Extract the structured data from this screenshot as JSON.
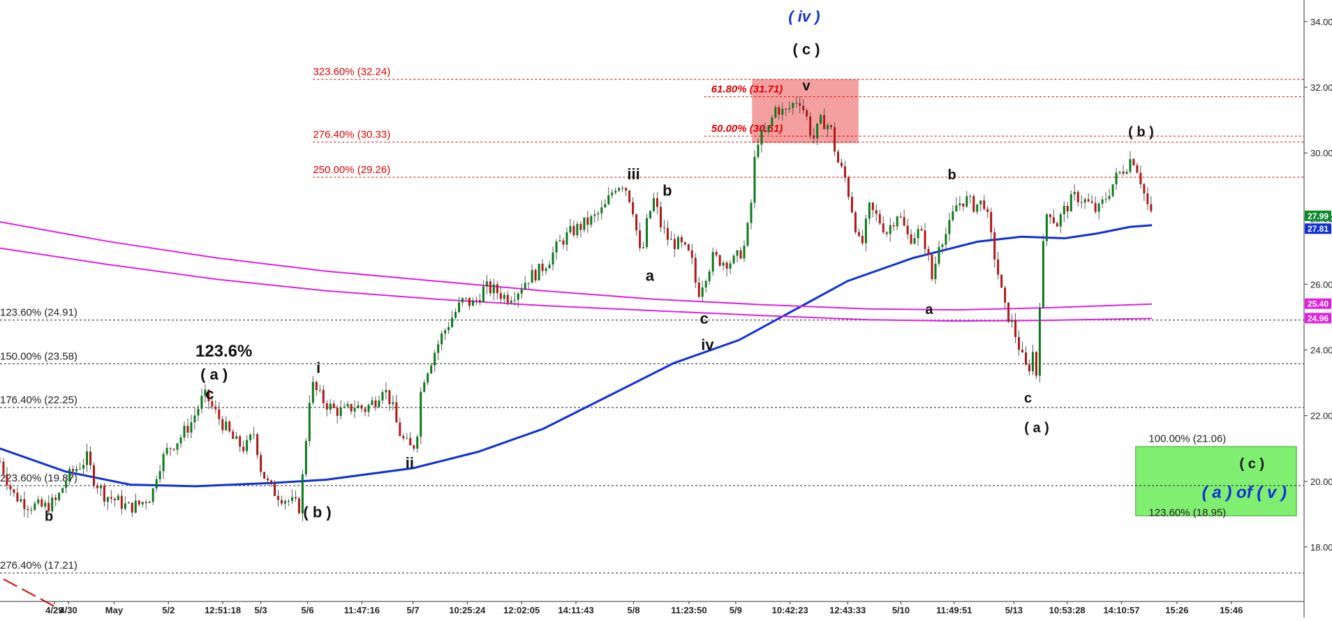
{
  "chart_data": {
    "type": "candlestick",
    "title": "",
    "colors": {
      "up": "#0a7a1a",
      "down": "#b01818",
      "ma_blue": "#1030d8",
      "ma_magenta": "#e020e0",
      "fib_red": "#e00000",
      "fib_black": "#222222",
      "wave_blue": "#1030d8",
      "zone_red": "#f4a0a0",
      "zone_green": "#80ee70",
      "last_price_bg": "#0a8a2a"
    },
    "y_axis": {
      "range": [
        16.8,
        35.0
      ],
      "ticks": [
        "18.00",
        "20.00",
        "22.00",
        "24.00",
        "26.00",
        "28.00",
        "30.00",
        "32.00",
        "34.00"
      ],
      "tick_values": [
        18,
        20,
        22,
        24,
        26,
        28,
        30,
        32,
        34
      ],
      "price_tags": [
        {
          "label": "27.99",
          "value": 27.99,
          "bg": "#0a8a2a"
        },
        {
          "label": "27.81",
          "value": 27.81,
          "bg": "#1030d8"
        },
        {
          "label": "25.40",
          "value": 25.4,
          "bg": "#e020e0"
        },
        {
          "label": "24.96",
          "value": 24.96,
          "bg": "#e020e0"
        }
      ]
    },
    "x_axis": {
      "range": [
        0,
        1200
      ],
      "ticks": [
        {
          "label": "4/29",
          "x": 50
        },
        {
          "label": "4/30",
          "x": 63
        },
        {
          "label": "May",
          "x": 105
        },
        {
          "label": "5/2",
          "x": 155
        },
        {
          "label": "12:51:18",
          "x": 205
        },
        {
          "label": "5/3",
          "x": 240
        },
        {
          "label": "5/6",
          "x": 283
        },
        {
          "label": "11:47:16",
          "x": 333
        },
        {
          "label": "5/7",
          "x": 380
        },
        {
          "label": "10:25:24",
          "x": 430
        },
        {
          "label": "12:02:05",
          "x": 480
        },
        {
          "label": "14:11:43",
          "x": 530
        },
        {
          "label": "5/8",
          "x": 583
        },
        {
          "label": "11:23:50",
          "x": 634
        },
        {
          "label": "5/9",
          "x": 677
        },
        {
          "label": "10:42:23",
          "x": 727
        },
        {
          "label": "12:43:33",
          "x": 780
        },
        {
          "label": "5/10",
          "x": 829
        },
        {
          "label": "11:49:51",
          "x": 878
        },
        {
          "label": "5/13",
          "x": 933
        },
        {
          "label": "10:53:28",
          "x": 982
        },
        {
          "label": "14:10:57",
          "x": 1032
        },
        {
          "label": "15:26",
          "x": 1083
        },
        {
          "label": "15:46",
          "x": 1133
        }
      ]
    },
    "price_path": [
      {
        "x": 0,
        "v": 20.6
      },
      {
        "x": 12,
        "v": 19.6
      },
      {
        "x": 25,
        "v": 19.3
      },
      {
        "x": 40,
        "v": 19.2
      },
      {
        "x": 52,
        "v": 19.4
      },
      {
        "x": 60,
        "v": 20.0
      },
      {
        "x": 67,
        "v": 20.3
      },
      {
        "x": 80,
        "v": 20.7
      },
      {
        "x": 86,
        "v": 20.1
      },
      {
        "x": 96,
        "v": 19.6
      },
      {
        "x": 108,
        "v": 19.4
      },
      {
        "x": 118,
        "v": 19.2
      },
      {
        "x": 128,
        "v": 19.3
      },
      {
        "x": 140,
        "v": 19.6
      },
      {
        "x": 145,
        "v": 20.4
      },
      {
        "x": 155,
        "v": 21.0
      },
      {
        "x": 165,
        "v": 21.3
      },
      {
        "x": 176,
        "v": 21.8
      },
      {
        "x": 186,
        "v": 22.5
      },
      {
        "x": 190,
        "v": 22.6
      },
      {
        "x": 196,
        "v": 22.2
      },
      {
        "x": 206,
        "v": 21.7
      },
      {
        "x": 216,
        "v": 21.2
      },
      {
        "x": 226,
        "v": 21.0
      },
      {
        "x": 234,
        "v": 21.5
      },
      {
        "x": 240,
        "v": 20.4
      },
      {
        "x": 248,
        "v": 19.8
      },
      {
        "x": 256,
        "v": 19.6
      },
      {
        "x": 266,
        "v": 19.4
      },
      {
        "x": 276,
        "v": 19.2
      },
      {
        "x": 286,
        "v": 23.0
      },
      {
        "x": 296,
        "v": 22.5
      },
      {
        "x": 306,
        "v": 22.2
      },
      {
        "x": 316,
        "v": 22.1
      },
      {
        "x": 326,
        "v": 22.3
      },
      {
        "x": 336,
        "v": 22.2
      },
      {
        "x": 346,
        "v": 22.5
      },
      {
        "x": 352,
        "v": 22.9
      },
      {
        "x": 360,
        "v": 22.4
      },
      {
        "x": 366,
        "v": 21.6
      },
      {
        "x": 372,
        "v": 21.2
      },
      {
        "x": 378,
        "v": 21.0
      },
      {
        "x": 383,
        "v": 21.2
      },
      {
        "x": 388,
        "v": 23.0
      },
      {
        "x": 398,
        "v": 23.8
      },
      {
        "x": 406,
        "v": 24.4
      },
      {
        "x": 416,
        "v": 25.0
      },
      {
        "x": 426,
        "v": 25.5
      },
      {
        "x": 436,
        "v": 25.4
      },
      {
        "x": 446,
        "v": 25.9
      },
      {
        "x": 456,
        "v": 25.8
      },
      {
        "x": 466,
        "v": 25.6
      },
      {
        "x": 476,
        "v": 25.8
      },
      {
        "x": 486,
        "v": 26.2
      },
      {
        "x": 496,
        "v": 26.4
      },
      {
        "x": 506,
        "v": 26.8
      },
      {
        "x": 516,
        "v": 27.3
      },
      {
        "x": 526,
        "v": 27.6
      },
      {
        "x": 536,
        "v": 27.8
      },
      {
        "x": 546,
        "v": 28.0
      },
      {
        "x": 556,
        "v": 28.3
      },
      {
        "x": 566,
        "v": 29.0
      },
      {
        "x": 574,
        "v": 29.1
      },
      {
        "x": 582,
        "v": 28.4
      },
      {
        "x": 590,
        "v": 26.7
      },
      {
        "x": 596,
        "v": 28.0
      },
      {
        "x": 602,
        "v": 28.6
      },
      {
        "x": 608,
        "v": 27.8
      },
      {
        "x": 616,
        "v": 27.3
      },
      {
        "x": 626,
        "v": 27.2
      },
      {
        "x": 636,
        "v": 26.8
      },
      {
        "x": 642,
        "v": 25.7
      },
      {
        "x": 648,
        "v": 26.2
      },
      {
        "x": 656,
        "v": 26.8
      },
      {
        "x": 666,
        "v": 26.7
      },
      {
        "x": 676,
        "v": 26.7
      },
      {
        "x": 686,
        "v": 27.2
      },
      {
        "x": 691,
        "v": 28.4
      },
      {
        "x": 696,
        "v": 30.4
      },
      {
        "x": 706,
        "v": 30.6
      },
      {
        "x": 714,
        "v": 31.4
      },
      {
        "x": 722,
        "v": 31.2
      },
      {
        "x": 730,
        "v": 31.5
      },
      {
        "x": 735,
        "v": 31.7
      },
      {
        "x": 742,
        "v": 31.1
      },
      {
        "x": 748,
        "v": 30.4
      },
      {
        "x": 756,
        "v": 31.0
      },
      {
        "x": 764,
        "v": 30.8
      },
      {
        "x": 770,
        "v": 29.8
      },
      {
        "x": 778,
        "v": 29.2
      },
      {
        "x": 786,
        "v": 28.0
      },
      {
        "x": 792,
        "v": 27.0
      },
      {
        "x": 800,
        "v": 28.3
      },
      {
        "x": 808,
        "v": 28.0
      },
      {
        "x": 816,
        "v": 27.6
      },
      {
        "x": 826,
        "v": 28.2
      },
      {
        "x": 836,
        "v": 27.4
      },
      {
        "x": 846,
        "v": 27.6
      },
      {
        "x": 852,
        "v": 27.2
      },
      {
        "x": 858,
        "v": 26.1
      },
      {
        "x": 864,
        "v": 27.3
      },
      {
        "x": 872,
        "v": 27.6
      },
      {
        "x": 880,
        "v": 28.4
      },
      {
        "x": 888,
        "v": 28.6
      },
      {
        "x": 896,
        "v": 28.4
      },
      {
        "x": 906,
        "v": 28.5
      },
      {
        "x": 912,
        "v": 27.4
      },
      {
        "x": 918,
        "v": 26.4
      },
      {
        "x": 924,
        "v": 25.3
      },
      {
        "x": 930,
        "v": 24.9
      },
      {
        "x": 936,
        "v": 24.3
      },
      {
        "x": 942,
        "v": 23.6
      },
      {
        "x": 946,
        "v": 23.3
      },
      {
        "x": 950,
        "v": 24.0
      },
      {
        "x": 954,
        "v": 23.2
      },
      {
        "x": 958,
        "v": 26.5
      },
      {
        "x": 964,
        "v": 28.4
      },
      {
        "x": 972,
        "v": 27.8
      },
      {
        "x": 980,
        "v": 28.3
      },
      {
        "x": 990,
        "v": 28.7
      },
      {
        "x": 1000,
        "v": 28.5
      },
      {
        "x": 1010,
        "v": 28.2
      },
      {
        "x": 1020,
        "v": 28.8
      },
      {
        "x": 1028,
        "v": 29.3
      },
      {
        "x": 1036,
        "v": 29.6
      },
      {
        "x": 1042,
        "v": 29.9
      },
      {
        "x": 1048,
        "v": 29.4
      },
      {
        "x": 1054,
        "v": 28.6
      },
      {
        "x": 1060,
        "v": 28.0
      }
    ],
    "moving_averages": [
      {
        "color": "#1030d8",
        "width": 3,
        "points": [
          {
            "x": 0,
            "v": 21.0
          },
          {
            "x": 60,
            "v": 20.3
          },
          {
            "x": 120,
            "v": 19.9
          },
          {
            "x": 180,
            "v": 19.85
          },
          {
            "x": 250,
            "v": 19.95
          },
          {
            "x": 300,
            "v": 20.05
          },
          {
            "x": 380,
            "v": 20.4
          },
          {
            "x": 440,
            "v": 20.9
          },
          {
            "x": 500,
            "v": 21.6
          },
          {
            "x": 560,
            "v": 22.6
          },
          {
            "x": 620,
            "v": 23.6
          },
          {
            "x": 680,
            "v": 24.3
          },
          {
            "x": 730,
            "v": 25.2
          },
          {
            "x": 780,
            "v": 26.1
          },
          {
            "x": 840,
            "v": 26.8
          },
          {
            "x": 900,
            "v": 27.3
          },
          {
            "x": 940,
            "v": 27.45
          },
          {
            "x": 980,
            "v": 27.4
          },
          {
            "x": 1010,
            "v": 27.55
          },
          {
            "x": 1040,
            "v": 27.75
          },
          {
            "x": 1060,
            "v": 27.8
          }
        ]
      },
      {
        "color": "#e020e0",
        "width": 2,
        "points": [
          {
            "x": 0,
            "v": 27.9
          },
          {
            "x": 100,
            "v": 27.3
          },
          {
            "x": 200,
            "v": 26.8
          },
          {
            "x": 300,
            "v": 26.4
          },
          {
            "x": 400,
            "v": 26.1
          },
          {
            "x": 500,
            "v": 25.8
          },
          {
            "x": 600,
            "v": 25.55
          },
          {
            "x": 700,
            "v": 25.38
          },
          {
            "x": 800,
            "v": 25.25
          },
          {
            "x": 880,
            "v": 25.22
          },
          {
            "x": 960,
            "v": 25.28
          },
          {
            "x": 1060,
            "v": 25.4
          }
        ]
      },
      {
        "color": "#e020e0",
        "width": 2,
        "points": [
          {
            "x": 0,
            "v": 27.1
          },
          {
            "x": 100,
            "v": 26.6
          },
          {
            "x": 200,
            "v": 26.15
          },
          {
            "x": 300,
            "v": 25.8
          },
          {
            "x": 400,
            "v": 25.55
          },
          {
            "x": 500,
            "v": 25.35
          },
          {
            "x": 600,
            "v": 25.2
          },
          {
            "x": 700,
            "v": 25.05
          },
          {
            "x": 800,
            "v": 24.92
          },
          {
            "x": 880,
            "v": 24.88
          },
          {
            "x": 960,
            "v": 24.9
          },
          {
            "x": 1060,
            "v": 24.96
          }
        ]
      }
    ],
    "fib_levels": [
      {
        "label": "323.60% (32.24)",
        "value": 32.24,
        "color": "#e00000",
        "x_start": 288
      },
      {
        "label": "276.40% (30.33)",
        "value": 30.33,
        "color": "#e00000",
        "x_start": 288
      },
      {
        "label": "250.00% (29.26)",
        "value": 29.26,
        "color": "#e00000",
        "x_start": 288
      },
      {
        "label": "123.60% (24.91)",
        "value": 24.91,
        "color": "#222222",
        "x_start": 0
      },
      {
        "label": "150.00% (23.58)",
        "value": 23.58,
        "color": "#222222",
        "x_start": 0
      },
      {
        "label": "176.40% (22.25)",
        "value": 22.25,
        "color": "#222222",
        "x_start": 0
      },
      {
        "label": "223.60% (19.87)",
        "value": 19.87,
        "color": "#222222",
        "x_start": 0
      },
      {
        "label": "276.40% (17.21)",
        "value": 17.21,
        "color": "#222222",
        "x_start": 0
      }
    ],
    "fib_levels_short": [
      {
        "label": "61.80% (31.71)",
        "value": 31.71,
        "x_start": 648
      },
      {
        "label": "50.00% (30.51)",
        "value": 30.51,
        "x_start": 648
      }
    ],
    "zones": [
      {
        "x0": 692,
        "x1": 790,
        "v0": 30.3,
        "v1": 32.24,
        "color": "#f4a0a0"
      },
      {
        "x0": 1045,
        "x1": 1193,
        "v0": 18.95,
        "v1": 21.06,
        "color": "#80ee70"
      }
    ],
    "zone_labels": [
      {
        "label": "100.00% (21.06)",
        "x": 1057,
        "v": 21.15
      },
      {
        "label": "123.60% (18.95)",
        "x": 1057,
        "v": 18.9
      }
    ],
    "wave_labels": [
      {
        "text": "( iv )",
        "x": 740,
        "v": 34.0,
        "color": "#1030d8",
        "italic": true,
        "size": 22
      },
      {
        "text": "( c )",
        "x": 742,
        "v": 33.0,
        "color": "#111111",
        "size": 22
      },
      {
        "text": "v",
        "x": 742,
        "v": 31.9,
        "color": "#111111",
        "size": 20
      },
      {
        "text": "( b )",
        "x": 1050,
        "v": 30.5,
        "color": "#111111",
        "size": 20
      },
      {
        "text": "b",
        "x": 876,
        "v": 29.2,
        "color": "#111111",
        "size": 20
      },
      {
        "text": "iii",
        "x": 583,
        "v": 29.2,
        "color": "#111111",
        "size": 22
      },
      {
        "text": "b",
        "x": 614,
        "v": 28.7,
        "color": "#111111",
        "size": 22
      },
      {
        "text": "a",
        "x": 598,
        "v": 26.1,
        "color": "#111111",
        "size": 22
      },
      {
        "text": "c",
        "x": 648,
        "v": 24.8,
        "color": "#111111",
        "size": 22
      },
      {
        "text": "iv",
        "x": 651,
        "v": 24.0,
        "color": "#111111",
        "size": 22
      },
      {
        "text": "a",
        "x": 855,
        "v": 25.1,
        "color": "#111111",
        "size": 20
      },
      {
        "text": "c",
        "x": 946,
        "v": 22.4,
        "color": "#111111",
        "size": 20
      },
      {
        "text": "( a )",
        "x": 954,
        "v": 21.5,
        "color": "#111111",
        "size": 20
      },
      {
        "text": "123.6%",
        "x": 206,
        "v": 23.8,
        "color": "#111111",
        "size": 24
      },
      {
        "text": "( a )",
        "x": 197,
        "v": 23.1,
        "color": "#111111",
        "size": 22
      },
      {
        "text": "c",
        "x": 193,
        "v": 22.5,
        "color": "#111111",
        "size": 22
      },
      {
        "text": "i",
        "x": 293,
        "v": 23.3,
        "color": "#111111",
        "size": 22
      },
      {
        "text": "ii",
        "x": 377,
        "v": 20.4,
        "color": "#111111",
        "size": 22
      },
      {
        "text": "b",
        "x": 45,
        "v": 18.8,
        "color": "#111111",
        "size": 20
      },
      {
        "text": "( b )",
        "x": 292,
        "v": 18.9,
        "color": "#111111",
        "size": 22
      },
      {
        "text": "( c )",
        "x": 1152,
        "v": 20.4,
        "color": "#111111",
        "size": 20
      },
      {
        "text": "( a ) of ( v )",
        "x": 1145,
        "v": 19.5,
        "color": "#1030d8",
        "italic": true,
        "size": 24
      }
    ]
  }
}
